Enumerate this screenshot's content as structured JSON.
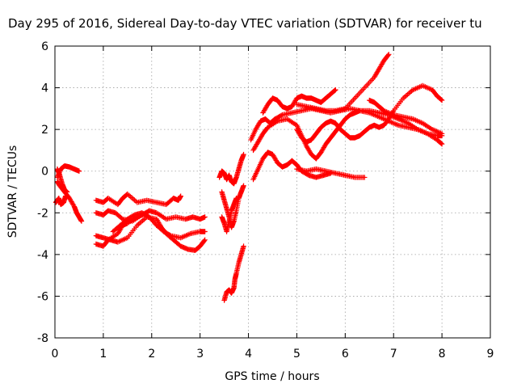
{
  "chart_data": {
    "type": "scatter",
    "title": "Day 295 of 2016, Sidereal Day-to-day VTEC variation (SDTVAR) for receiver tu",
    "xlabel": "GPS time / hours",
    "ylabel": "SDTVAR / TECUs",
    "xlim": [
      0,
      9
    ],
    "ylim": [
      -8,
      6
    ],
    "xticks": [
      "0",
      "1",
      "2",
      "3",
      "4",
      "5",
      "6",
      "7",
      "8",
      "9"
    ],
    "yticks": [
      "-8",
      "-6",
      "-4",
      "-2",
      "0",
      "2",
      "4",
      "6"
    ],
    "grid": true,
    "marker": "plus",
    "color": "#ff0000",
    "series": [
      {
        "points": [
          [
            0.05,
            -0.3
          ],
          [
            0.12,
            0.1
          ],
          [
            0.2,
            0.25
          ],
          [
            0.3,
            0.2
          ],
          [
            0.4,
            0.1
          ],
          [
            0.5,
            0.0
          ]
        ]
      },
      {
        "points": [
          [
            0.05,
            -0.5
          ],
          [
            0.1,
            -0.7
          ],
          [
            0.2,
            -1.0
          ],
          [
            0.3,
            -1.3
          ],
          [
            0.4,
            -1.7
          ],
          [
            0.45,
            -2.0
          ],
          [
            0.5,
            -2.2
          ],
          [
            0.55,
            -2.4
          ]
        ]
      },
      {
        "points": [
          [
            0.02,
            -1.5
          ],
          [
            0.08,
            -1.3
          ],
          [
            0.12,
            -1.6
          ],
          [
            0.18,
            -1.5
          ],
          [
            0.22,
            -1.2
          ]
        ]
      },
      {
        "points": [
          [
            0.05,
            0.1
          ],
          [
            0.1,
            -0.2
          ],
          [
            0.15,
            -0.6
          ],
          [
            0.2,
            -0.9
          ],
          [
            0.25,
            -1.0
          ]
        ]
      },
      {
        "points": [
          [
            0.85,
            -1.4
          ],
          [
            1.0,
            -1.5
          ],
          [
            1.1,
            -1.3
          ],
          [
            1.3,
            -1.6
          ],
          [
            1.4,
            -1.3
          ],
          [
            1.5,
            -1.1
          ],
          [
            1.7,
            -1.5
          ],
          [
            1.9,
            -1.4
          ],
          [
            2.1,
            -1.5
          ],
          [
            2.3,
            -1.6
          ],
          [
            2.45,
            -1.3
          ],
          [
            2.55,
            -1.4
          ],
          [
            2.6,
            -1.2
          ]
        ]
      },
      {
        "points": [
          [
            0.85,
            -2.0
          ],
          [
            1.0,
            -2.1
          ],
          [
            1.1,
            -1.9
          ],
          [
            1.25,
            -2.0
          ],
          [
            1.4,
            -2.3
          ],
          [
            1.6,
            -2.4
          ],
          [
            1.8,
            -2.1
          ],
          [
            1.95,
            -1.9
          ],
          [
            2.1,
            -2.0
          ],
          [
            2.3,
            -2.3
          ],
          [
            2.5,
            -2.2
          ],
          [
            2.7,
            -2.3
          ],
          [
            2.85,
            -2.2
          ],
          [
            3.0,
            -2.3
          ],
          [
            3.1,
            -2.2
          ]
        ]
      },
      {
        "points": [
          [
            0.85,
            -3.1
          ],
          [
            1.0,
            -3.2
          ],
          [
            1.15,
            -3.3
          ],
          [
            1.3,
            -3.4
          ],
          [
            1.5,
            -3.2
          ],
          [
            1.7,
            -2.6
          ],
          [
            1.9,
            -2.2
          ],
          [
            2.1,
            -2.3
          ],
          [
            2.2,
            -2.7
          ],
          [
            2.3,
            -3.0
          ],
          [
            2.45,
            -3.3
          ],
          [
            2.6,
            -3.6
          ],
          [
            2.75,
            -3.75
          ],
          [
            2.9,
            -3.8
          ],
          [
            3.0,
            -3.6
          ],
          [
            3.1,
            -3.3
          ]
        ]
      },
      {
        "points": [
          [
            1.2,
            -2.9
          ],
          [
            1.35,
            -2.6
          ],
          [
            1.5,
            -2.3
          ],
          [
            1.65,
            -2.1
          ],
          [
            1.8,
            -2.0
          ],
          [
            1.95,
            -2.2
          ],
          [
            2.1,
            -2.6
          ],
          [
            2.25,
            -2.9
          ],
          [
            2.4,
            -3.1
          ],
          [
            2.6,
            -3.2
          ],
          [
            2.8,
            -3.0
          ],
          [
            3.0,
            -2.9
          ],
          [
            3.1,
            -2.9
          ]
        ]
      },
      {
        "points": [
          [
            0.85,
            -3.5
          ],
          [
            1.0,
            -3.6
          ],
          [
            1.1,
            -3.3
          ],
          [
            1.3,
            -3.0
          ],
          [
            1.4,
            -2.6
          ],
          [
            1.5,
            -2.5
          ],
          [
            1.7,
            -2.2
          ],
          [
            1.9,
            -2.0
          ]
        ]
      },
      {
        "points": [
          [
            3.4,
            -0.3
          ],
          [
            3.45,
            0.0
          ],
          [
            3.5,
            -0.1
          ],
          [
            3.55,
            -0.4
          ],
          [
            3.6,
            -0.2
          ],
          [
            3.65,
            -0.5
          ],
          [
            3.7,
            -0.6
          ],
          [
            3.75,
            -0.3
          ],
          [
            3.8,
            0.1
          ],
          [
            3.85,
            0.5
          ],
          [
            3.9,
            0.8
          ]
        ]
      },
      {
        "points": [
          [
            3.45,
            -1.0
          ],
          [
            3.5,
            -1.4
          ],
          [
            3.55,
            -1.8
          ],
          [
            3.6,
            -2.2
          ],
          [
            3.65,
            -2.7
          ],
          [
            3.7,
            -2.4
          ],
          [
            3.75,
            -1.9
          ],
          [
            3.8,
            -1.3
          ],
          [
            3.85,
            -1.0
          ],
          [
            3.9,
            -0.7
          ]
        ]
      },
      {
        "points": [
          [
            3.45,
            -2.2
          ],
          [
            3.5,
            -2.5
          ],
          [
            3.55,
            -2.9
          ],
          [
            3.6,
            -2.4
          ],
          [
            3.65,
            -1.9
          ],
          [
            3.7,
            -1.6
          ],
          [
            3.75,
            -1.3
          ]
        ]
      },
      {
        "points": [
          [
            3.5,
            -6.2
          ],
          [
            3.55,
            -5.8
          ],
          [
            3.6,
            -5.7
          ],
          [
            3.65,
            -5.85
          ],
          [
            3.7,
            -5.6
          ],
          [
            3.72,
            -5.2
          ],
          [
            3.75,
            -4.9
          ],
          [
            3.8,
            -4.4
          ],
          [
            3.85,
            -4.0
          ],
          [
            3.9,
            -3.6
          ]
        ]
      },
      {
        "points": [
          [
            4.1,
            -0.4
          ],
          [
            4.2,
            0.1
          ],
          [
            4.3,
            0.6
          ],
          [
            4.4,
            0.9
          ],
          [
            4.5,
            0.8
          ],
          [
            4.6,
            0.4
          ],
          [
            4.7,
            0.2
          ],
          [
            4.8,
            0.3
          ],
          [
            4.9,
            0.5
          ],
          [
            5.0,
            0.3
          ],
          [
            5.1,
            0.0
          ],
          [
            5.25,
            -0.2
          ],
          [
            5.4,
            -0.3
          ],
          [
            5.55,
            -0.2
          ],
          [
            5.7,
            -0.1
          ]
        ]
      },
      {
        "points": [
          [
            5.0,
            0.1
          ],
          [
            5.2,
            0.0
          ],
          [
            5.4,
            0.1
          ],
          [
            5.6,
            0.0
          ],
          [
            5.8,
            -0.1
          ],
          [
            6.0,
            -0.2
          ],
          [
            6.2,
            -0.3
          ],
          [
            6.4,
            -0.3
          ]
        ]
      },
      {
        "points": [
          [
            4.05,
            1.5
          ],
          [
            4.15,
            2.0
          ],
          [
            4.25,
            2.4
          ],
          [
            4.35,
            2.5
          ],
          [
            4.45,
            2.3
          ],
          [
            4.55,
            2.5
          ],
          [
            4.7,
            2.7
          ],
          [
            4.9,
            2.8
          ],
          [
            5.1,
            2.9
          ],
          [
            5.3,
            3.0
          ],
          [
            5.5,
            2.9
          ],
          [
            5.7,
            2.8
          ],
          [
            5.9,
            2.9
          ],
          [
            6.1,
            3.0
          ],
          [
            6.3,
            2.9
          ],
          [
            6.5,
            2.8
          ],
          [
            6.7,
            2.6
          ],
          [
            6.9,
            2.4
          ],
          [
            7.1,
            2.2
          ],
          [
            7.3,
            2.1
          ],
          [
            7.5,
            2.0
          ],
          [
            7.7,
            1.8
          ],
          [
            7.9,
            1.7
          ],
          [
            8.0,
            1.7
          ]
        ]
      },
      {
        "points": [
          [
            4.1,
            1.0
          ],
          [
            4.2,
            1.4
          ],
          [
            4.3,
            1.8
          ],
          [
            4.4,
            2.1
          ],
          [
            4.6,
            2.4
          ],
          [
            4.8,
            2.5
          ],
          [
            5.0,
            2.2
          ],
          [
            5.1,
            1.7
          ],
          [
            5.2,
            1.2
          ],
          [
            5.3,
            0.8
          ],
          [
            5.4,
            0.6
          ],
          [
            5.5,
            0.9
          ],
          [
            5.6,
            1.3
          ],
          [
            5.7,
            1.6
          ],
          [
            5.8,
            1.9
          ],
          [
            5.9,
            2.2
          ],
          [
            6.0,
            2.5
          ],
          [
            6.1,
            2.7
          ],
          [
            6.2,
            2.8
          ],
          [
            6.3,
            2.9
          ],
          [
            6.5,
            2.9
          ],
          [
            6.7,
            2.8
          ],
          [
            6.9,
            2.7
          ],
          [
            7.1,
            2.5
          ],
          [
            7.3,
            2.3
          ],
          [
            7.5,
            2.0
          ],
          [
            7.7,
            1.8
          ],
          [
            7.9,
            1.5
          ],
          [
            8.0,
            1.3
          ]
        ]
      },
      {
        "points": [
          [
            4.3,
            2.8
          ],
          [
            4.4,
            3.2
          ],
          [
            4.5,
            3.5
          ],
          [
            4.6,
            3.4
          ],
          [
            4.7,
            3.1
          ],
          [
            4.8,
            3.0
          ],
          [
            4.9,
            3.1
          ],
          [
            5.0,
            3.5
          ],
          [
            5.1,
            3.6
          ],
          [
            5.2,
            3.5
          ],
          [
            5.3,
            3.5
          ],
          [
            5.4,
            3.4
          ],
          [
            5.5,
            3.3
          ],
          [
            5.6,
            3.5
          ],
          [
            5.7,
            3.7
          ],
          [
            5.8,
            3.9
          ]
        ]
      },
      {
        "points": [
          [
            5.0,
            3.2
          ],
          [
            5.2,
            3.1
          ],
          [
            5.4,
            3.0
          ],
          [
            5.6,
            2.9
          ],
          [
            5.8,
            2.9
          ],
          [
            6.0,
            3.0
          ],
          [
            6.2,
            3.5
          ],
          [
            6.4,
            4.0
          ],
          [
            6.6,
            4.5
          ],
          [
            6.7,
            4.9
          ],
          [
            6.8,
            5.3
          ],
          [
            6.9,
            5.6
          ]
        ]
      },
      {
        "points": [
          [
            5.0,
            2.0
          ],
          [
            5.1,
            1.6
          ],
          [
            5.2,
            1.4
          ],
          [
            5.3,
            1.5
          ],
          [
            5.4,
            1.8
          ],
          [
            5.5,
            2.1
          ],
          [
            5.6,
            2.3
          ],
          [
            5.7,
            2.4
          ],
          [
            5.8,
            2.3
          ],
          [
            5.9,
            2.0
          ],
          [
            6.0,
            1.8
          ],
          [
            6.1,
            1.6
          ],
          [
            6.2,
            1.6
          ],
          [
            6.3,
            1.7
          ],
          [
            6.4,
            1.9
          ],
          [
            6.5,
            2.1
          ],
          [
            6.6,
            2.2
          ],
          [
            6.7,
            2.1
          ],
          [
            6.8,
            2.2
          ],
          [
            6.9,
            2.5
          ],
          [
            7.0,
            2.9
          ],
          [
            7.2,
            3.5
          ],
          [
            7.4,
            3.9
          ],
          [
            7.6,
            4.1
          ],
          [
            7.8,
            3.9
          ],
          [
            7.9,
            3.6
          ],
          [
            8.0,
            3.4
          ]
        ]
      },
      {
        "points": [
          [
            6.5,
            3.4
          ],
          [
            6.6,
            3.3
          ],
          [
            6.7,
            3.1
          ],
          [
            6.8,
            2.9
          ],
          [
            7.0,
            2.7
          ],
          [
            7.2,
            2.6
          ],
          [
            7.4,
            2.5
          ],
          [
            7.6,
            2.3
          ],
          [
            7.8,
            2.0
          ],
          [
            8.0,
            1.8
          ]
        ]
      }
    ]
  }
}
